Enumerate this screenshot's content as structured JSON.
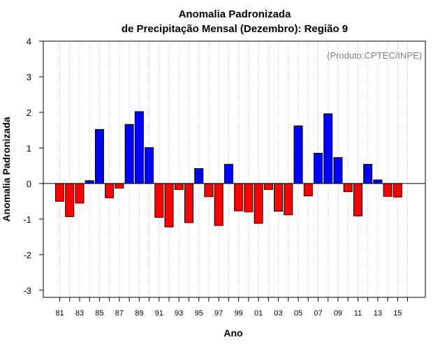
{
  "chart_data": {
    "type": "bar",
    "title_line1": "Anomalia Padronizada",
    "title_line2": "de Precipitação Mensal (Dezembro): Região 9",
    "xlabel": "Ano",
    "ylabel": "Anomalia Padronizada",
    "annotation": "(Produto:CPTEC/INPE)",
    "ylim": [
      -3.2,
      4
    ],
    "yticks": [
      -3,
      -2,
      -1,
      0,
      1,
      2,
      3,
      4
    ],
    "categories": [
      "81",
      "82",
      "83",
      "84",
      "85",
      "86",
      "87",
      "88",
      "89",
      "90",
      "91",
      "92",
      "93",
      "94",
      "95",
      "96",
      "97",
      "98",
      "99",
      "00",
      "01",
      "02",
      "03",
      "04",
      "05",
      "06",
      "07",
      "08",
      "09",
      "10",
      "11",
      "12",
      "13",
      "14",
      "15",
      "16"
    ],
    "xtick_labels": [
      "81",
      "83",
      "85",
      "87",
      "89",
      "91",
      "93",
      "95",
      "97",
      "99",
      "01",
      "03",
      "05",
      "07",
      "09",
      "11",
      "13",
      "15"
    ],
    "values": [
      -0.5,
      -0.93,
      -0.55,
      0.08,
      1.52,
      -0.4,
      -0.13,
      1.66,
      2.02,
      1.01,
      -0.95,
      -1.22,
      -0.17,
      -1.1,
      0.42,
      -0.37,
      -1.18,
      0.54,
      -0.77,
      -0.8,
      -1.12,
      -0.17,
      -0.78,
      -0.88,
      1.62,
      -0.35,
      0.85,
      1.96,
      0.73,
      -0.23,
      -0.91,
      0.54,
      0.1,
      -0.36,
      -0.38,
      null
    ],
    "positive_color": "#0000ff",
    "negative_color": "#ff0000",
    "grid": true,
    "legend": "none"
  }
}
